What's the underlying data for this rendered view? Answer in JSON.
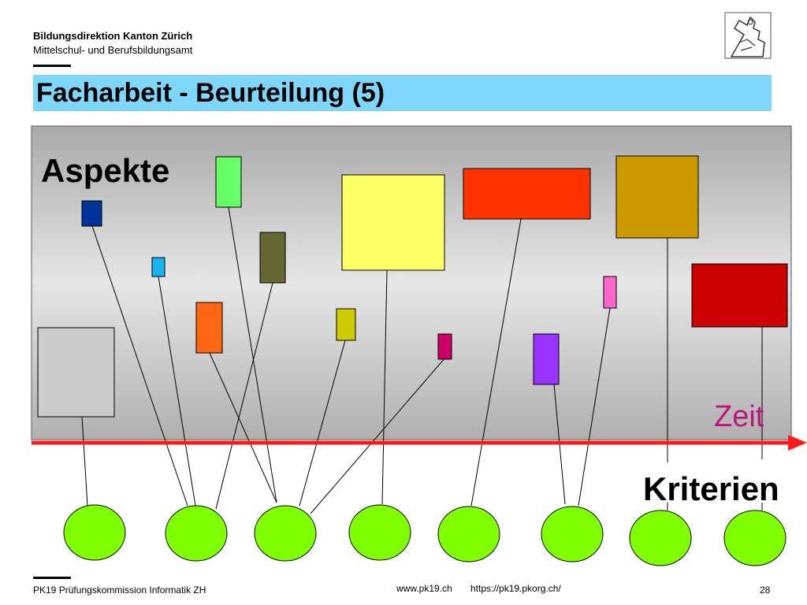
{
  "header": {
    "org_line1": "Bildungsdirektion Kanton Zürich",
    "org_line2": "Mittelschul- und Berufsbildungsamt",
    "logo": "zurich-lion-coat-of-arms-icon"
  },
  "slide": {
    "title": "Facharbeit - Beurteilung (5)"
  },
  "diagram": {
    "aspects_label": "Aspekte",
    "time_label": "Zeit",
    "criteria_label": "Kriterien",
    "colors": {
      "panel_top": "#a9a9a9",
      "panel_mid": "#e6e6e6",
      "time_arrow": "#ff1a1a",
      "time_label": "#c0127c",
      "criteria_fill": "#7fff00",
      "aspects": [
        "#cccccc",
        "#003399",
        "#1ab2f0",
        "#66ff66",
        "#ff6611",
        "#666633",
        "#ffff66",
        "#cccc00",
        "#cc0066",
        "#ff3300",
        "#9933ff",
        "#cc9900",
        "#ff66cc",
        "#cc0000"
      ]
    }
  },
  "footer": {
    "left": "PK19 Prüfungskommission Informatik ZH",
    "url1": "www.pk19.ch",
    "url2": "https://pk19.pkorg.ch/",
    "page": "28"
  }
}
